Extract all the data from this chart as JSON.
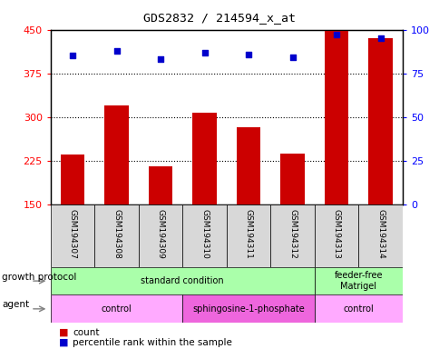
{
  "title": "GDS2832 / 214594_x_at",
  "samples": [
    "GSM194307",
    "GSM194308",
    "GSM194309",
    "GSM194310",
    "GSM194311",
    "GSM194312",
    "GSM194313",
    "GSM194314"
  ],
  "counts": [
    235,
    320,
    215,
    308,
    283,
    237,
    448,
    435
  ],
  "percentile_ranks": [
    85,
    88,
    83,
    87,
    86,
    84,
    97,
    95
  ],
  "ylim_left": [
    150,
    450
  ],
  "ylim_right": [
    0,
    100
  ],
  "yticks_left": [
    150,
    225,
    300,
    375,
    450
  ],
  "yticks_right": [
    0,
    25,
    50,
    75,
    100
  ],
  "bar_color": "#cc0000",
  "dot_color": "#0000cc",
  "gp_regions": [
    {
      "label": "standard condition",
      "start": 0,
      "end": 6,
      "color": "#aaffaa"
    },
    {
      "label": "feeder-free\nMatrigel",
      "start": 6,
      "end": 8,
      "color": "#aaffaa"
    }
  ],
  "ag_regions": [
    {
      "label": "control",
      "start": 0,
      "end": 3,
      "color": "#ffaaff"
    },
    {
      "label": "sphingosine-1-phosphate",
      "start": 3,
      "end": 6,
      "color": "#ee66dd"
    },
    {
      "label": "control",
      "start": 6,
      "end": 8,
      "color": "#ffaaff"
    }
  ],
  "legend_count_label": "count",
  "legend_pct_label": "percentile rank within the sample",
  "growth_label": "growth protocol",
  "agent_label": "agent",
  "bg_color": "#ffffff"
}
